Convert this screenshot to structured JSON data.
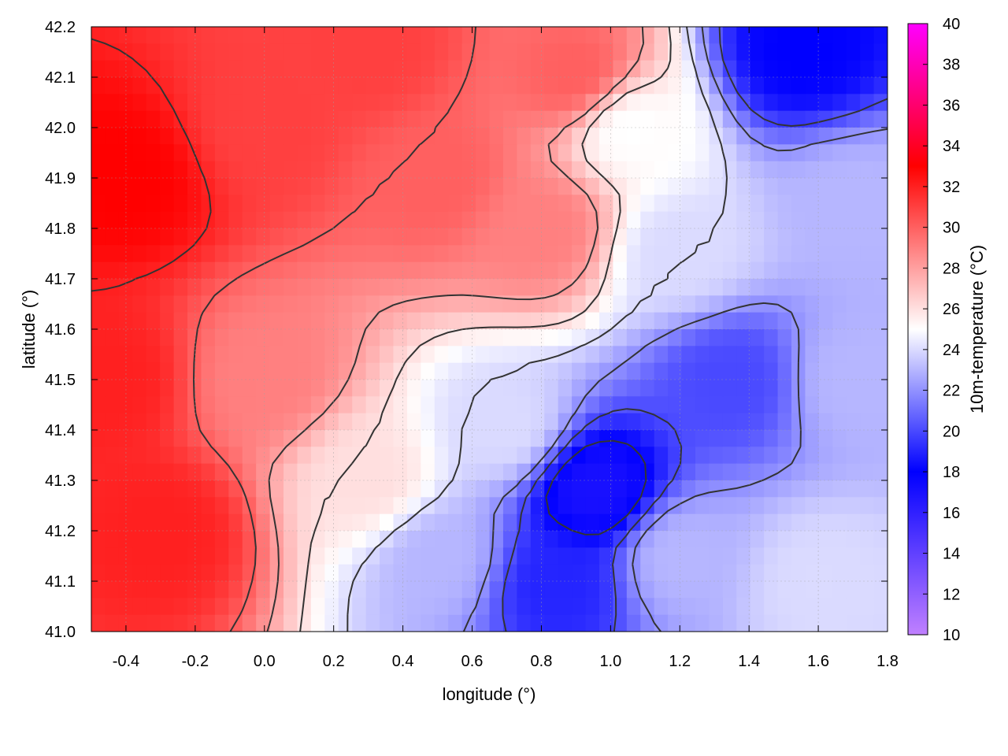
{
  "chart_data": {
    "type": "heatmap",
    "title": "",
    "xlabel": "longitude (°)",
    "ylabel": "latitude (°)",
    "colorbar_label": "10m-temperature (°C)",
    "xlim": [
      -0.5,
      1.8
    ],
    "ylim": [
      41.0,
      42.2
    ],
    "x_ticks": [
      "-0.4",
      "-0.2",
      "0.0",
      "0.2",
      "0.4",
      "0.6",
      "0.8",
      "1.0",
      "1.2",
      "1.4",
      "1.6",
      "1.8"
    ],
    "y_ticks": [
      "41.0",
      "41.1",
      "41.2",
      "41.3",
      "41.4",
      "41.5",
      "41.6",
      "41.7",
      "41.8",
      "41.9",
      "42.0",
      "42.1",
      "42.2"
    ],
    "colorbar_range": [
      10,
      40
    ],
    "colorbar_ticks": [
      "10",
      "12",
      "14",
      "16",
      "18",
      "20",
      "22",
      "24",
      "26",
      "28",
      "30",
      "32",
      "34",
      "36",
      "38",
      "40"
    ],
    "grid": true,
    "colormap": [
      {
        "value": 10,
        "color": "#c080ff"
      },
      {
        "value": 18,
        "color": "#0000ff"
      },
      {
        "value": 25,
        "color": "#ffffff"
      },
      {
        "value": 33,
        "color": "#ff0000"
      },
      {
        "value": 40,
        "color": "#ff00ff"
      }
    ],
    "contour_color": "#333333",
    "field_samples": [
      {
        "lon": -0.4,
        "lat": 41.9,
        "temp": 33
      },
      {
        "lon": -0.45,
        "lat": 41.5,
        "temp": 32
      },
      {
        "lon": -0.3,
        "lat": 41.2,
        "temp": 32
      },
      {
        "lon": 0.0,
        "lat": 41.5,
        "temp": 29
      },
      {
        "lon": 0.0,
        "lat": 42.0,
        "temp": 31
      },
      {
        "lon": 0.3,
        "lat": 42.15,
        "temp": 31
      },
      {
        "lon": 0.5,
        "lat": 41.9,
        "temp": 30
      },
      {
        "lon": 0.8,
        "lat": 41.8,
        "temp": 29
      },
      {
        "lon": 0.9,
        "lat": 42.1,
        "temp": 30
      },
      {
        "lon": 0.3,
        "lat": 41.3,
        "temp": 26
      },
      {
        "lon": 0.5,
        "lat": 41.15,
        "temp": 23
      },
      {
        "lon": 0.7,
        "lat": 41.4,
        "temp": 24
      },
      {
        "lon": 0.85,
        "lat": 41.1,
        "temp": 19
      },
      {
        "lon": 0.95,
        "lat": 41.28,
        "temp": 17
      },
      {
        "lon": 1.2,
        "lat": 41.15,
        "temp": 23
      },
      {
        "lon": 1.35,
        "lat": 41.5,
        "temp": 20
      },
      {
        "lon": 1.2,
        "lat": 41.75,
        "temp": 24
      },
      {
        "lon": 1.55,
        "lat": 42.15,
        "temp": 18
      },
      {
        "lon": 1.7,
        "lat": 41.85,
        "temp": 23
      },
      {
        "lon": 1.7,
        "lat": 41.5,
        "temp": 23
      },
      {
        "lon": 1.6,
        "lat": 41.1,
        "temp": 24
      },
      {
        "lon": 1.05,
        "lat": 42.0,
        "temp": 25
      }
    ]
  }
}
